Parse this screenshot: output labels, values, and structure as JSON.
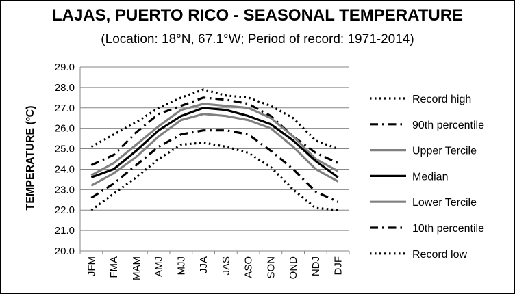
{
  "chart_data": {
    "type": "line",
    "title": "LAJAS, PUERTO RICO - SEASONAL TEMPERATURE",
    "subtitle": "(Location: 18°N, 67.1°W; Period of record: 1971-2014)",
    "ylabel": "TEMPERATURE (ºC)",
    "xlabel": "",
    "categories": [
      "JFM",
      "FMA",
      "MAM",
      "AMJ",
      "MJJ",
      "JJA",
      "JAS",
      "ASO",
      "SON",
      "OND",
      "NDJ",
      "DJF"
    ],
    "ylim": [
      20.0,
      29.0
    ],
    "yticks": [
      "20.0",
      "21.0",
      "22.0",
      "23.0",
      "24.0",
      "25.0",
      "26.0",
      "27.0",
      "28.0",
      "29.0"
    ],
    "grid": true,
    "legend_position": "right",
    "series": [
      {
        "name": "Record high",
        "style": "dotted",
        "color": "#000000",
        "values": [
          25.1,
          25.7,
          26.3,
          27.0,
          27.5,
          27.9,
          27.6,
          27.5,
          27.1,
          26.5,
          25.4,
          25.0
        ]
      },
      {
        "name": "90th percentile",
        "style": "dash-dot",
        "color": "#000000",
        "values": [
          24.2,
          24.7,
          25.8,
          26.7,
          27.1,
          27.5,
          27.4,
          27.2,
          26.6,
          25.6,
          24.8,
          24.3
        ]
      },
      {
        "name": "Upper Tercile",
        "style": "solid",
        "color": "#808080",
        "values": [
          23.7,
          24.3,
          25.2,
          26.1,
          26.9,
          27.2,
          27.1,
          27.0,
          26.5,
          25.6,
          24.5,
          23.9
        ]
      },
      {
        "name": "Median",
        "style": "solid",
        "color": "#000000",
        "values": [
          23.6,
          24.0,
          24.9,
          25.9,
          26.6,
          27.0,
          26.9,
          26.6,
          26.2,
          25.4,
          24.4,
          23.6
        ]
      },
      {
        "name": "Lower Tercile",
        "style": "solid",
        "color": "#808080",
        "values": [
          23.2,
          23.8,
          24.6,
          25.6,
          26.4,
          26.7,
          26.6,
          26.4,
          26.0,
          25.1,
          24.0,
          23.4
        ]
      },
      {
        "name": "10th percentile",
        "style": "dash-dot",
        "color": "#000000",
        "values": [
          22.6,
          23.3,
          24.2,
          25.1,
          25.7,
          25.9,
          25.9,
          25.7,
          24.9,
          24.0,
          22.9,
          22.4
        ]
      },
      {
        "name": "Record low",
        "style": "dotted",
        "color": "#000000",
        "values": [
          22.0,
          22.8,
          23.6,
          24.5,
          25.2,
          25.3,
          25.1,
          24.8,
          24.1,
          23.0,
          22.1,
          22.0
        ]
      }
    ]
  }
}
